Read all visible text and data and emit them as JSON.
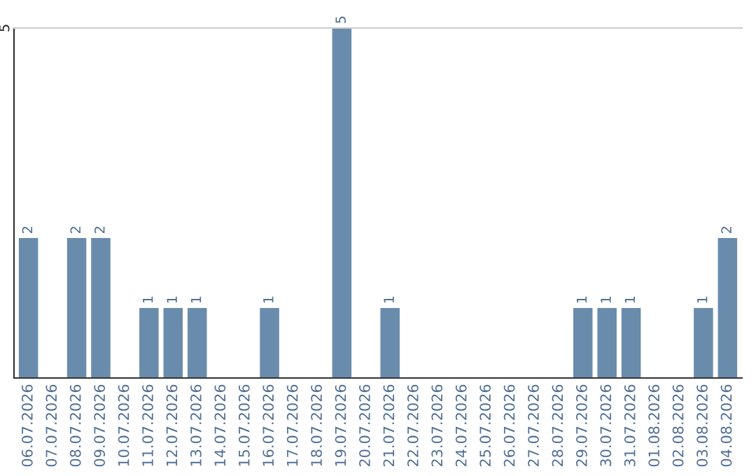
{
  "chart_data": {
    "type": "bar",
    "categories": [
      "06.07.2026",
      "07.07.2026",
      "08.07.2026",
      "09.07.2026",
      "10.07.2026",
      "11.07.2026",
      "12.07.2026",
      "13.07.2026",
      "14.07.2026",
      "15.07.2026",
      "16.07.2026",
      "17.07.2026",
      "18.07.2026",
      "19.07.2026",
      "20.07.2026",
      "21.07.2026",
      "22.07.2026",
      "23.07.2026",
      "24.07.2026",
      "25.07.2026",
      "26.07.2026",
      "27.07.2026",
      "28.07.2026",
      "29.07.2026",
      "30.07.2026",
      "31.07.2026",
      "01.08.2026",
      "02.08.2026",
      "03.08.2026",
      "04.08.2026"
    ],
    "values": [
      2,
      0,
      2,
      2,
      0,
      1,
      1,
      1,
      0,
      0,
      1,
      0,
      0,
      5,
      0,
      1,
      0,
      0,
      0,
      0,
      0,
      0,
      0,
      1,
      1,
      1,
      0,
      0,
      1,
      2
    ],
    "value_labels": [
      "2",
      null,
      "2",
      "2",
      null,
      "1",
      "1",
      "1",
      null,
      null,
      "1",
      null,
      null,
      "5",
      null,
      "1",
      null,
      null,
      null,
      null,
      null,
      null,
      null,
      "1",
      "1",
      "1",
      null,
      null,
      "1",
      "2"
    ],
    "color": "#6a8cac",
    "ylim": [
      0,
      5
    ],
    "yticks": [
      5
    ]
  }
}
